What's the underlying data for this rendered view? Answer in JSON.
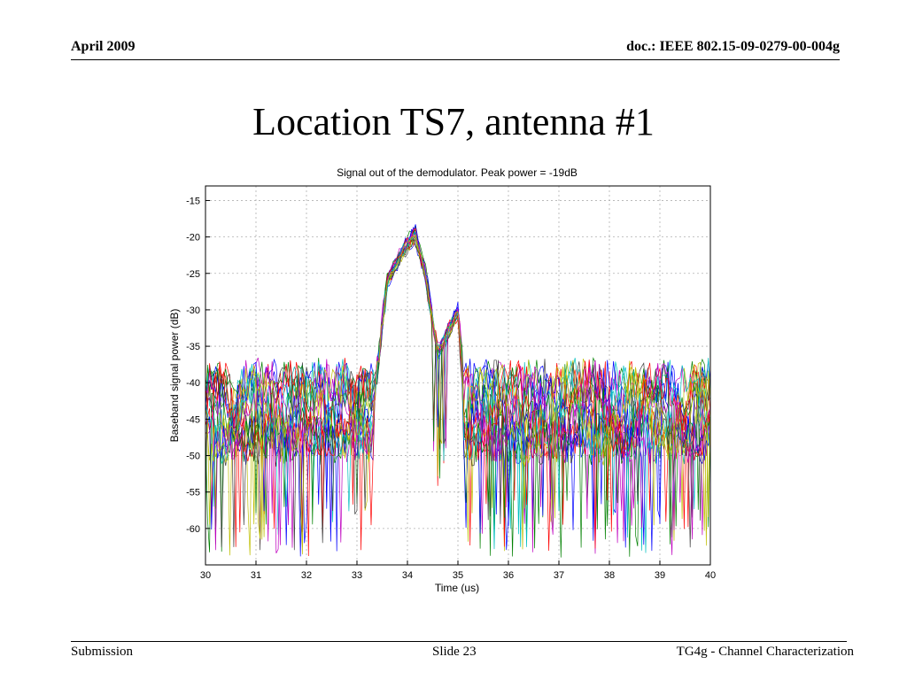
{
  "header": {
    "date": "April 2009",
    "doc": "doc.: IEEE 802.15-09-0279-00-004g"
  },
  "slide": {
    "title": "Location TS7, antenna #1"
  },
  "footer": {
    "left": "Submission",
    "center": "Slide 23",
    "right": "TG4g - Channel Characterization"
  },
  "chart_data": {
    "type": "line",
    "title": "Signal out of the demodulator. Peak power = -19dB",
    "xlabel": "Time (us)",
    "ylabel": "Baseband signal power (dB)",
    "xlim": [
      30,
      40
    ],
    "ylim": [
      -65,
      -13
    ],
    "xticks": [
      30,
      31,
      32,
      33,
      34,
      35,
      36,
      37,
      38,
      39,
      40
    ],
    "yticks": [
      -15,
      -20,
      -25,
      -30,
      -35,
      -40,
      -45,
      -50,
      -55,
      -60
    ],
    "grid": true,
    "series_count": 20,
    "series_colors": [
      "#0000ff",
      "#008000",
      "#ff0000",
      "#00bfbf",
      "#bf00bf",
      "#bfbf00",
      "#404040"
    ],
    "envelope": {
      "x": [
        30,
        33.3,
        33.6,
        33.9,
        34.15,
        34.35,
        34.6,
        34.75,
        35.0,
        35.15,
        40
      ],
      "mean": [
        -44,
        -44,
        -26,
        -22,
        -19.5,
        -25,
        -36,
        -34,
        -30,
        -44,
        -44
      ]
    },
    "noise_floor": {
      "mean": -44,
      "spread_db": 9,
      "min_dips": -64
    }
  }
}
